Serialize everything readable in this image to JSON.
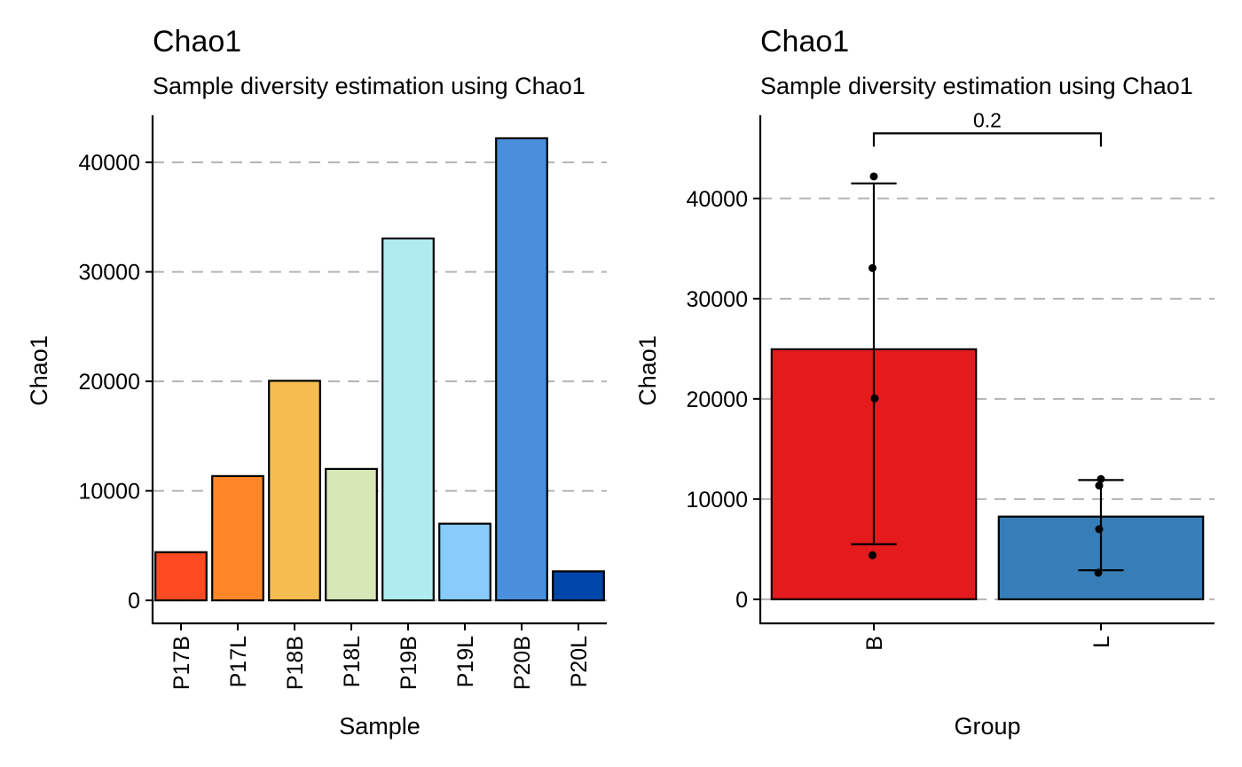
{
  "chart_data": [
    {
      "type": "bar",
      "title": "Chao1",
      "subtitle": "Sample diversity estimation using Chao1",
      "xlabel": "Sample",
      "ylabel": "Chao1",
      "categories": [
        "P17B",
        "P17L",
        "P18B",
        "P18L",
        "P19B",
        "P19L",
        "P20B",
        "P20L"
      ],
      "values": [
        4400,
        11350,
        20050,
        12000,
        33050,
        7000,
        42200,
        2650
      ],
      "colors": [
        "#FF4A22",
        "#FF872A",
        "#F5BD4F",
        "#D8E7B6",
        "#B0ECEF",
        "#87CCFA",
        "#4A8FDC",
        "#0046A8"
      ],
      "ylim": [
        -2100,
        44300
      ],
      "yticks": [
        0,
        10000,
        20000,
        30000,
        40000
      ],
      "ytick_labels": [
        "0",
        "10000",
        "20000",
        "30000",
        "40000"
      ],
      "grid": "major-y-dashed",
      "legend": "none"
    },
    {
      "type": "bar",
      "title": "Chao1",
      "subtitle": "Sample diversity estimation using Chao1",
      "xlabel": "Group",
      "ylabel": "Chao1",
      "categories": [
        "B",
        "L"
      ],
      "values": [
        24950,
        8250
      ],
      "colors": [
        "#E41A1C",
        "#377EB8"
      ],
      "error_bars": [
        {
          "low": 5500,
          "high": 41500
        },
        {
          "low": 2900,
          "high": 11900
        }
      ],
      "points": [
        {
          "group": "B",
          "y": 42200
        },
        {
          "group": "B",
          "y": 33050
        },
        {
          "group": "B",
          "y": 20050
        },
        {
          "group": "B",
          "y": 4400
        },
        {
          "group": "L",
          "y": 12000
        },
        {
          "group": "L",
          "y": 11350
        },
        {
          "group": "L",
          "y": 7000
        },
        {
          "group": "L",
          "y": 2650
        }
      ],
      "comparison": {
        "groups": [
          "B",
          "L"
        ],
        "label": "0.2",
        "y": 46500
      },
      "ylim": [
        -2400,
        48300
      ],
      "yticks": [
        0,
        10000,
        20000,
        30000,
        40000
      ],
      "ytick_labels": [
        "0",
        "10000",
        "20000",
        "30000",
        "40000"
      ],
      "grid": "major-y-dashed",
      "legend": "none"
    }
  ]
}
